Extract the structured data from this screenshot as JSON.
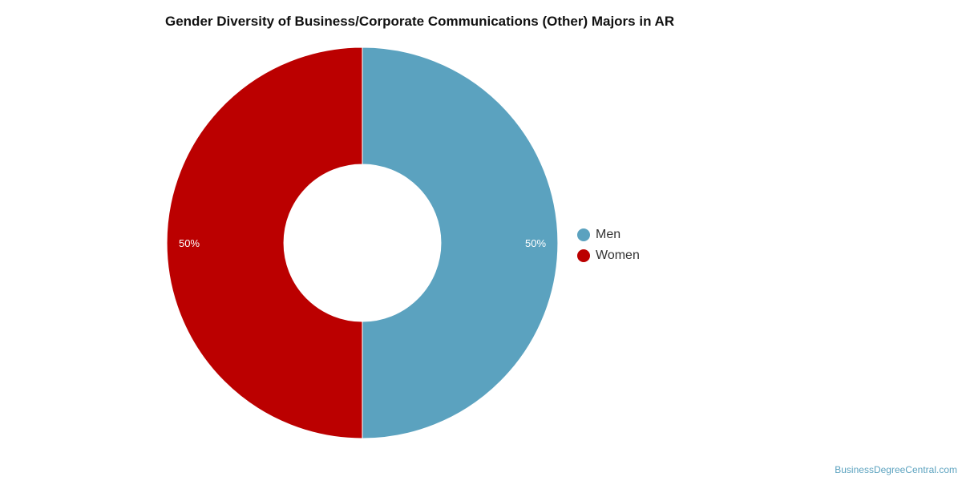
{
  "chart_data": {
    "type": "pie",
    "title": "Gender Diversity of Business/Corporate Communications (Other) Majors in AR",
    "categories": [
      "Men",
      "Women"
    ],
    "values": [
      50,
      50
    ],
    "labels": [
      "50%",
      "50%"
    ],
    "colors": [
      "#5ba2bf",
      "#bb0000"
    ],
    "donut": true,
    "legend_position": "right"
  },
  "legend": {
    "items": [
      {
        "label": "Men",
        "color": "#5ba2bf"
      },
      {
        "label": "Women",
        "color": "#bb0000"
      }
    ]
  },
  "footer": {
    "watermark": "BusinessDegreeCentral.com"
  }
}
